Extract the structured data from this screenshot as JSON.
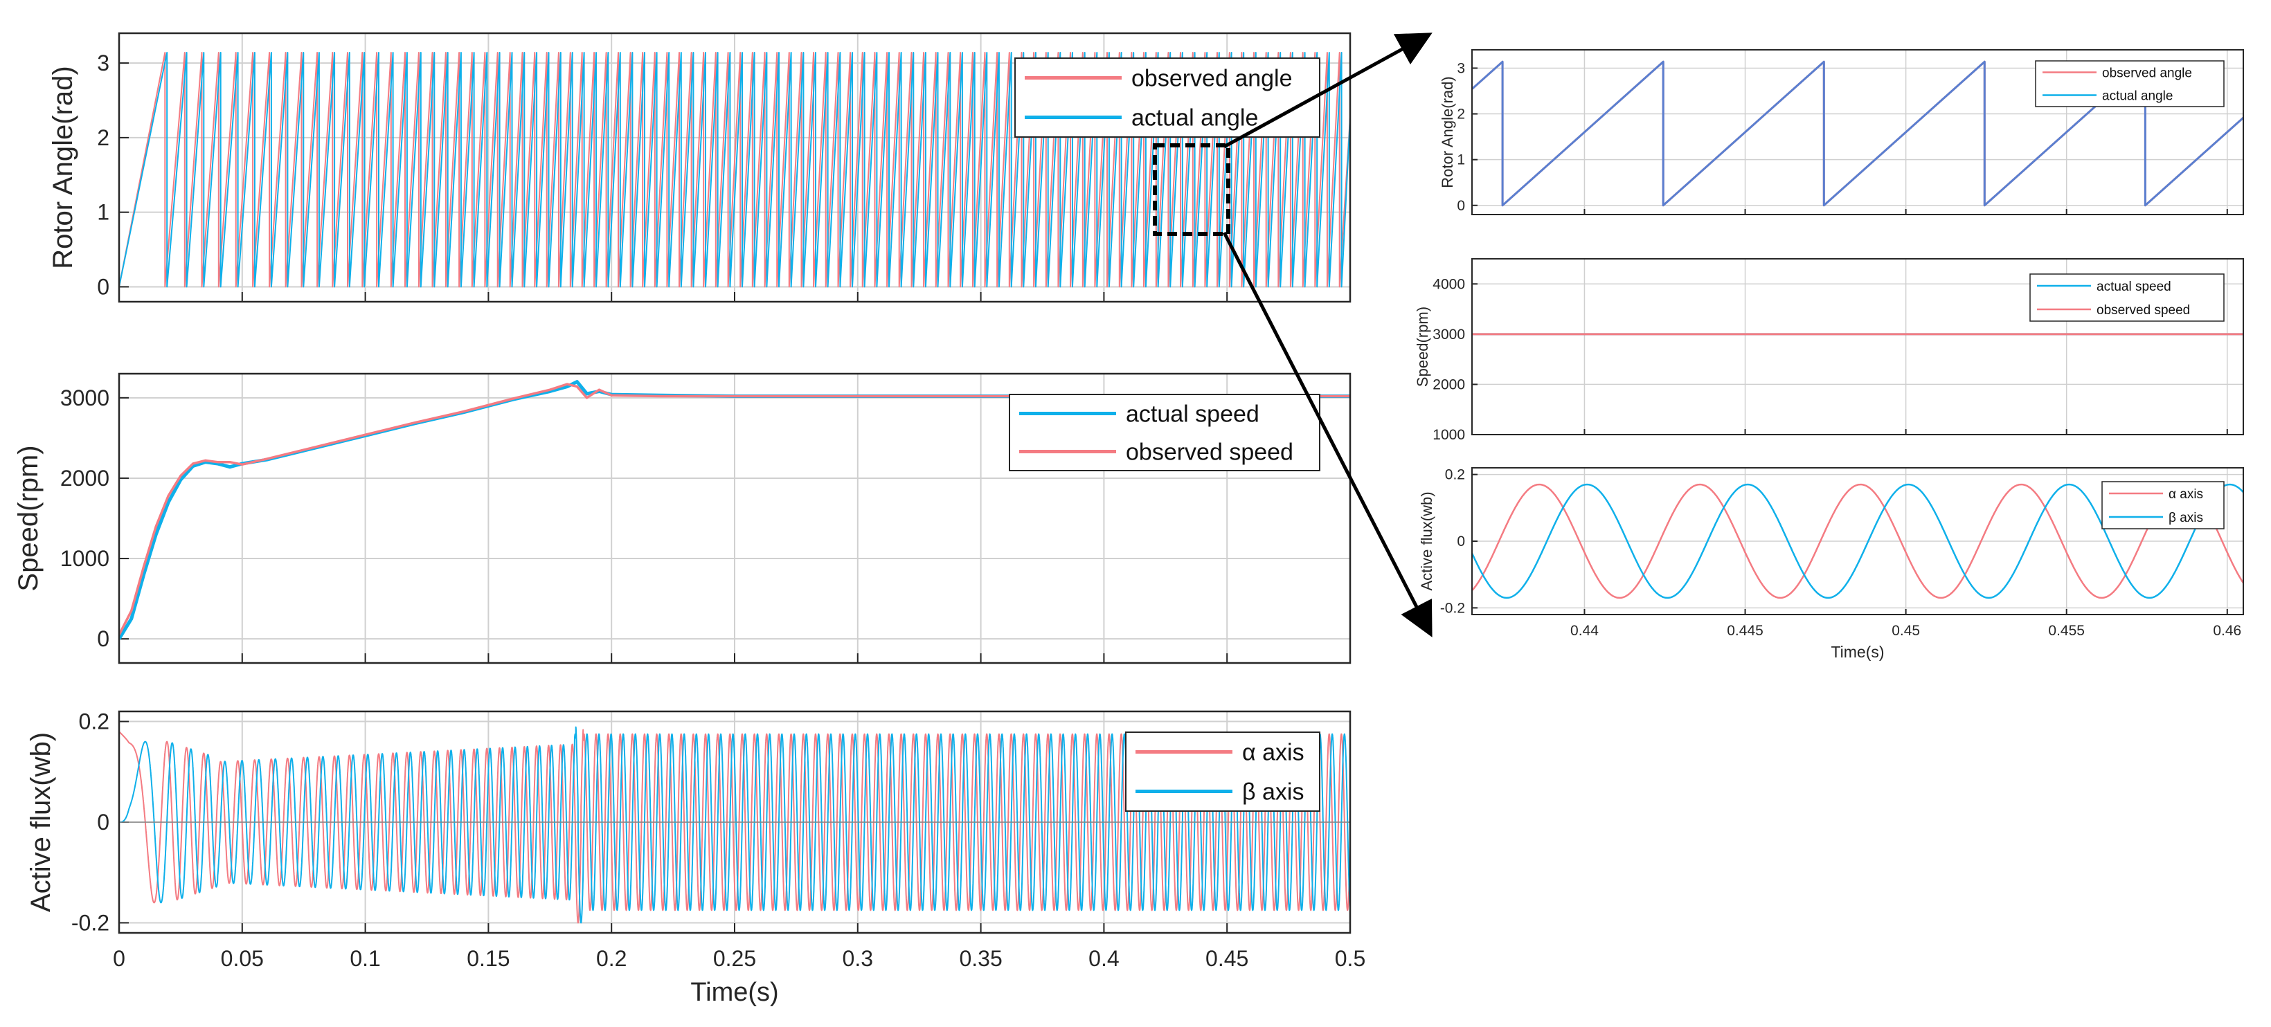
{
  "colors": {
    "observed": "#f47b82",
    "actual": "#0fb0ea",
    "grid": "#d0d0d0",
    "axis": "#262626",
    "callout": "#000000"
  },
  "xlabel": "Time(s)",
  "chart_data": [
    {
      "id": "angle",
      "type": "line",
      "ylabel": "Rotor Angle(rad)",
      "xlim": [
        0,
        0.5
      ],
      "ylim": [
        -0.2,
        3.4
      ],
      "xticks": [
        0,
        0.05,
        0.1,
        0.15,
        0.2,
        0.25,
        0.3,
        0.35,
        0.4,
        0.45,
        0.5
      ],
      "yticks": [
        0,
        1,
        2,
        3
      ],
      "legend": [
        "observed angle",
        "actual angle"
      ],
      "series": [
        {
          "name": "observed angle",
          "color": "#f47b82"
        },
        {
          "name": "actual angle",
          "color": "#0fb0ea"
        }
      ],
      "description_values": {
        "sawtooth_min": 0,
        "sawtooth_max": 3.14
      }
    },
    {
      "id": "speed",
      "type": "line",
      "ylabel": "Speed(rpm)",
      "xlim": [
        0,
        0.5
      ],
      "ylim": [
        -300,
        3300
      ],
      "xticks": [
        0,
        0.05,
        0.1,
        0.15,
        0.2,
        0.25,
        0.3,
        0.35,
        0.4,
        0.45,
        0.5
      ],
      "yticks": [
        0,
        1000,
        2000,
        3000
      ],
      "legend": [
        "actual speed",
        "observed speed"
      ],
      "series": [
        {
          "name": "actual speed",
          "color": "#0fb0ea",
          "x": [
            0,
            0.005,
            0.01,
            0.015,
            0.02,
            0.025,
            0.03,
            0.035,
            0.04,
            0.045,
            0.05,
            0.06,
            0.08,
            0.1,
            0.12,
            0.14,
            0.16,
            0.175,
            0.182,
            0.186,
            0.19,
            0.195,
            0.2,
            0.22,
            0.25,
            0.5
          ],
          "y": [
            0,
            250,
            800,
            1300,
            1700,
            1980,
            2150,
            2200,
            2180,
            2140,
            2180,
            2230,
            2380,
            2530,
            2680,
            2820,
            2980,
            3080,
            3140,
            3200,
            3050,
            3080,
            3040,
            3030,
            3020,
            3020
          ]
        },
        {
          "name": "observed speed",
          "color": "#f47b82",
          "x": [
            0,
            0.005,
            0.01,
            0.015,
            0.02,
            0.025,
            0.03,
            0.035,
            0.04,
            0.045,
            0.05,
            0.06,
            0.08,
            0.1,
            0.12,
            0.14,
            0.16,
            0.175,
            0.182,
            0.186,
            0.19,
            0.195,
            0.2,
            0.22,
            0.25,
            0.5
          ],
          "y": [
            50,
            350,
            900,
            1400,
            1780,
            2030,
            2180,
            2220,
            2200,
            2200,
            2170,
            2240,
            2390,
            2540,
            2690,
            2830,
            2990,
            3100,
            3170,
            3140,
            3000,
            3100,
            3030,
            3020,
            3020,
            3020
          ]
        }
      ]
    },
    {
      "id": "flux",
      "type": "line",
      "ylabel": "Active flux(wb)",
      "xlim": [
        0,
        0.5
      ],
      "ylim": [
        -0.22,
        0.22
      ],
      "xticks": [
        0,
        0.05,
        0.1,
        0.15,
        0.2,
        0.25,
        0.3,
        0.35,
        0.4,
        0.45,
        0.5
      ],
      "xticklabels": [
        "0",
        "0.05",
        "0.1",
        "0.15",
        "0.2",
        "0.25",
        "0.3",
        "0.35",
        "0.4",
        "0.45",
        "0.5"
      ],
      "yticks": [
        -0.2,
        0,
        0.2
      ],
      "legend": [
        "α axis",
        "β axis"
      ],
      "series": [
        {
          "name": "α axis",
          "color": "#f47b82"
        },
        {
          "name": "β axis",
          "color": "#0fb0ea"
        }
      ],
      "description_values": {
        "steady_amplitude": 0.17
      }
    },
    {
      "id": "zoom_angle",
      "type": "line",
      "ylabel": "Rotor Angle(rad)",
      "xlim": [
        0.4365,
        0.4605
      ],
      "ylim": [
        -0.2,
        3.4
      ],
      "xticks": [
        0.44,
        0.445,
        0.45,
        0.455,
        0.46
      ],
      "yticks": [
        0,
        1,
        2,
        3
      ],
      "legend": [
        "observed angle",
        "actual angle"
      ],
      "series": [
        {
          "name": "observed angle",
          "color": "#f47b82"
        },
        {
          "name": "actual angle",
          "color": "#0fb0ea"
        }
      ],
      "description_values": {
        "electrical_frequency_hz": 200,
        "amplitude": 3.14
      }
    },
    {
      "id": "zoom_speed",
      "type": "line",
      "ylabel": "Speed(rpm)",
      "xlim": [
        0.4365,
        0.4605
      ],
      "ylim": [
        1000,
        4500
      ],
      "xticks": [
        0.44,
        0.445,
        0.45,
        0.455,
        0.46
      ],
      "yticks": [
        1000,
        2000,
        3000,
        4000
      ],
      "legend": [
        "actual speed",
        "observed speed"
      ],
      "series": [
        {
          "name": "actual speed",
          "color": "#0fb0ea",
          "x": [
            0.4365,
            0.4605
          ],
          "y": [
            3000,
            3000
          ]
        },
        {
          "name": "observed speed",
          "color": "#f47b82",
          "x": [
            0.4365,
            0.4605
          ],
          "y": [
            3000,
            3000
          ]
        }
      ]
    },
    {
      "id": "zoom_flux",
      "type": "line",
      "ylabel": "Active flux(wb)",
      "xlim": [
        0.4365,
        0.4605
      ],
      "ylim": [
        -0.22,
        0.22
      ],
      "xticks": [
        0.44,
        0.445,
        0.45,
        0.455,
        0.46
      ],
      "xticklabels": [
        "0.44",
        "0.445",
        "0.45",
        "0.455",
        "0.46"
      ],
      "yticks": [
        -0.2,
        0,
        0.2
      ],
      "legend": [
        "α axis",
        "β axis"
      ],
      "series": [
        {
          "name": "α axis",
          "color": "#f47b82"
        },
        {
          "name": "β axis",
          "color": "#0fb0ea"
        }
      ],
      "description_values": {
        "electrical_frequency_hz": 200,
        "amplitude": 0.17
      }
    }
  ]
}
